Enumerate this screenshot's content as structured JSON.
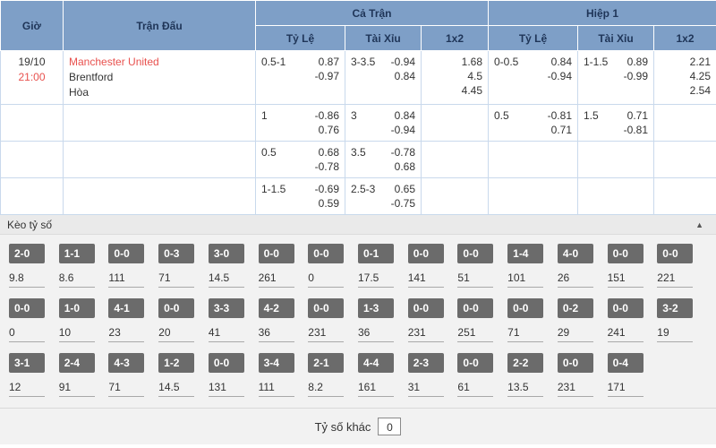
{
  "colors": {
    "header_blue": "#7e9fc7",
    "header_text": "#1f3558",
    "row_alt_blue": "#e9eff8",
    "highlight_red": "#e8514e",
    "score_box_gray": "#6b6b6b"
  },
  "table": {
    "header": {
      "time": "Giờ",
      "match": "Trận Đấu",
      "full": "Cả Trận",
      "half": "Hiệp 1",
      "hdp": "Tỷ Lệ",
      "ou": "Tài Xỉu",
      "x12": "1x2"
    },
    "match": {
      "date": "19/10",
      "time": "21:00",
      "home": "Manchester United",
      "away": "Brentford",
      "draw": "Hòa"
    },
    "rows": [
      {
        "ft_hdp_line": "0.5-1",
        "ft_hdp_a": "0.87",
        "ft_hdp_b": "-0.97",
        "ft_ou_line": "3-3.5",
        "ft_ou_a": "-0.94",
        "ft_ou_b": "0.84",
        "ft_1": "1.68",
        "ft_x": "4.5",
        "ft_2": "4.45",
        "h1_hdp_line": "0-0.5",
        "h1_hdp_a": "0.84",
        "h1_hdp_b": "-0.94",
        "h1_ou_line": "1-1.5",
        "h1_ou_a": "0.89",
        "h1_ou_b": "-0.99",
        "h1_1": "2.21",
        "h1_x": "4.25",
        "h1_2": "2.54"
      },
      {
        "ft_hdp_line": "1",
        "ft_hdp_a": "-0.86",
        "ft_hdp_b": "0.76",
        "ft_ou_line": "3",
        "ft_ou_a": "0.84",
        "ft_ou_b": "-0.94",
        "h1_hdp_line": "0.5",
        "h1_hdp_a": "-0.81",
        "h1_hdp_b": "0.71",
        "h1_ou_line": "1.5",
        "h1_ou_a": "0.71",
        "h1_ou_b": "-0.81"
      },
      {
        "ft_hdp_line": "0.5",
        "ft_hdp_a": "0.68",
        "ft_hdp_b": "-0.78",
        "ft_ou_line": "3.5",
        "ft_ou_a": "-0.78",
        "ft_ou_b": "0.68"
      },
      {
        "ft_hdp_line": "1-1.5",
        "ft_hdp_a": "-0.69",
        "ft_hdp_b": "0.59",
        "ft_ou_line": "2.5-3",
        "ft_ou_a": "0.65",
        "ft_ou_b": "-0.75"
      }
    ]
  },
  "score_section": {
    "title": "Kèo tỷ số",
    "collapse_icon": "▲",
    "rows": [
      {
        "cells": [
          {
            "score": "2-0",
            "odds": "9.8"
          },
          {
            "score": "1-1",
            "odds": "8.6"
          },
          {
            "score": "0-0",
            "odds": "111"
          },
          {
            "score": "0-3",
            "odds": "71"
          },
          {
            "score": "3-0",
            "odds": "14.5"
          },
          {
            "score": "0-0",
            "odds": "261"
          },
          {
            "score": "0-0",
            "odds": "0"
          },
          {
            "score": "0-1",
            "odds": "17.5"
          },
          {
            "score": "0-0",
            "odds": "141"
          },
          {
            "score": "0-0",
            "odds": "51"
          },
          {
            "score": "1-4",
            "odds": "101"
          },
          {
            "score": "4-0",
            "odds": "26"
          },
          {
            "score": "0-0",
            "odds": "151"
          },
          {
            "score": "0-0",
            "odds": "221"
          }
        ]
      },
      {
        "cells": [
          {
            "score": "0-0",
            "odds": "0"
          },
          {
            "score": "1-0",
            "odds": "10"
          },
          {
            "score": "4-1",
            "odds": "23"
          },
          {
            "score": "0-0",
            "odds": "20"
          },
          {
            "score": "3-3",
            "odds": "41"
          },
          {
            "score": "4-2",
            "odds": "36"
          },
          {
            "score": "0-0",
            "odds": "231"
          },
          {
            "score": "1-3",
            "odds": "36"
          },
          {
            "score": "0-0",
            "odds": "231"
          },
          {
            "score": "0-0",
            "odds": "251"
          },
          {
            "score": "0-0",
            "odds": "71"
          },
          {
            "score": "0-2",
            "odds": "29"
          },
          {
            "score": "0-0",
            "odds": "241"
          },
          {
            "score": "3-2",
            "odds": "19"
          }
        ]
      },
      {
        "cells": [
          {
            "score": "3-1",
            "odds": "12"
          },
          {
            "score": "2-4",
            "odds": "91"
          },
          {
            "score": "4-3",
            "odds": "71"
          },
          {
            "score": "1-2",
            "odds": "14.5"
          },
          {
            "score": "0-0",
            "odds": "131"
          },
          {
            "score": "3-4",
            "odds": "111"
          },
          {
            "score": "2-1",
            "odds": "8.2"
          },
          {
            "score": "4-4",
            "odds": "161"
          },
          {
            "score": "2-3",
            "odds": "31"
          },
          {
            "score": "0-0",
            "odds": "61"
          },
          {
            "score": "2-2",
            "odds": "13.5"
          },
          {
            "score": "0-0",
            "odds": "231"
          },
          {
            "score": "0-4",
            "odds": "171"
          }
        ]
      }
    ],
    "other": {
      "label": "Tỷ số khác",
      "value": "0"
    }
  }
}
